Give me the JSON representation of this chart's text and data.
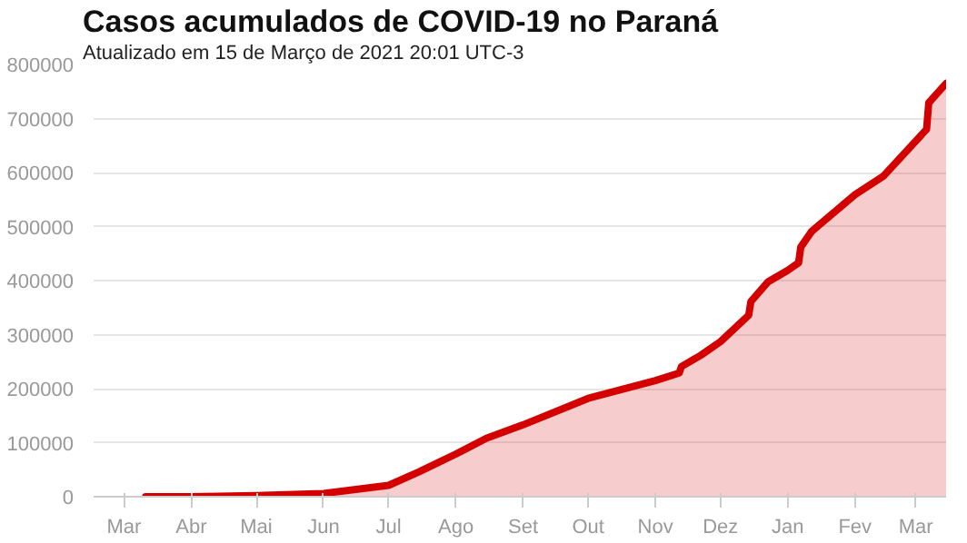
{
  "chart_data": {
    "type": "area",
    "title": "Casos acumulados de COVID-19 no Paraná",
    "subtitle": "Atualizado em 15 de Março de 2021 20:01 UTC-3",
    "x": [
      "2020-03-11",
      "2020-04-01",
      "2020-05-01",
      "2020-06-01",
      "2020-07-01",
      "2020-07-15",
      "2020-08-01",
      "2020-08-15",
      "2020-09-01",
      "2020-10-01",
      "2020-11-01",
      "2020-11-12",
      "2020-11-13",
      "2020-11-22",
      "2020-12-01",
      "2020-12-14",
      "2020-12-15",
      "2020-12-23",
      "2021-01-01",
      "2021-01-06",
      "2021-01-07",
      "2021-01-12",
      "2021-02-01",
      "2021-02-14",
      "2021-03-06",
      "2021-03-07",
      "2021-03-15"
    ],
    "series": [
      {
        "color": "#d40000",
        "values": [
          0,
          0,
          2000,
          6000,
          21000,
          46000,
          79000,
          108000,
          133000,
          182000,
          215000,
          229000,
          241000,
          262000,
          287000,
          336000,
          361000,
          398000,
          419000,
          433000,
          462000,
          491000,
          559000,
          593000,
          680000,
          729000,
          765000
        ]
      }
    ],
    "xlim": [
      "2020-02-16",
      "2021-03-15"
    ],
    "xticks": [
      {
        "value": "2020-03-01",
        "label": "Mar"
      },
      {
        "value": "2020-04-01",
        "label": "Abr"
      },
      {
        "value": "2020-05-01",
        "label": "Mai"
      },
      {
        "value": "2020-06-01",
        "label": "Jun"
      },
      {
        "value": "2020-07-01",
        "label": "Jul"
      },
      {
        "value": "2020-08-01",
        "label": "Ago"
      },
      {
        "value": "2020-09-01",
        "label": "Set"
      },
      {
        "value": "2020-10-01",
        "label": "Out"
      },
      {
        "value": "2020-11-01",
        "label": "Nov"
      },
      {
        "value": "2020-12-01",
        "label": "Dez"
      },
      {
        "value": "2021-01-01",
        "label": "Jan"
      },
      {
        "value": "2021-02-01",
        "label": "Fev"
      },
      {
        "value": "2021-03-01",
        "label": "Mar"
      }
    ],
    "ylim": [
      0,
      800000
    ],
    "yticks": [
      0,
      100000,
      200000,
      300000,
      400000,
      500000,
      600000,
      700000,
      800000
    ],
    "grid": "y"
  }
}
